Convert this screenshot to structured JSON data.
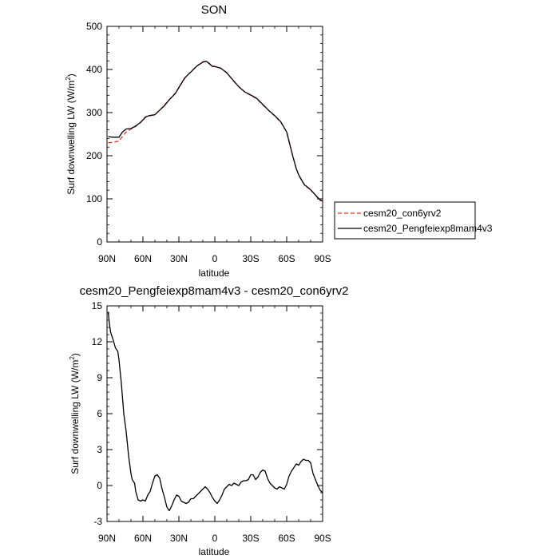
{
  "chart_data": [
    {
      "type": "line",
      "title": "SON",
      "xlabel": "latitude",
      "ylabel": "Surf downwelling LW (W/m",
      "ylabel_sup": "2",
      "ylabel_end": ")",
      "xlim": [
        90,
        -90
      ],
      "ylim": [
        0,
        500
      ],
      "x_ticks": [
        90,
        60,
        30,
        0,
        -30,
        -60,
        -90
      ],
      "x_tick_labels": [
        "90N",
        "60N",
        "30N",
        "0",
        "30S",
        "60S",
        "90S"
      ],
      "y_ticks": [
        0,
        100,
        200,
        300,
        400,
        500
      ],
      "y_tick_labels": [
        "0",
        "100",
        "200",
        "300",
        "400",
        "500"
      ],
      "legend_position": "outside-right",
      "series": [
        {
          "name": "cesm20_con6yrv2",
          "color": "#e03030",
          "dash": "dashed",
          "x": [
            89,
            85,
            80,
            77,
            74,
            70,
            66,
            62,
            58,
            55,
            50,
            46,
            42,
            38,
            33,
            29,
            25,
            20,
            15,
            10,
            7,
            5,
            2,
            0,
            -5,
            -10,
            -15,
            -20,
            -25,
            -30,
            -35,
            -40,
            -45,
            -50,
            -55,
            -60,
            -65,
            -68,
            -70,
            -73,
            -75,
            -78,
            -80,
            -83,
            -85,
            -88,
            -90
          ],
          "y": [
            230,
            231,
            234,
            245,
            255,
            262,
            268,
            278,
            290,
            292,
            296,
            305,
            318,
            330,
            345,
            362,
            380,
            395,
            408,
            418,
            419,
            415,
            408,
            407,
            403,
            393,
            375,
            360,
            348,
            340,
            332,
            318,
            305,
            292,
            278,
            255,
            200,
            170,
            155,
            140,
            132,
            125,
            120,
            112,
            105,
            96,
            95
          ]
        },
        {
          "name": "cesm20_Pengfeiexp8mam4v3",
          "color": "#000000",
          "dash": "solid",
          "x": [
            89,
            85,
            80,
            77,
            74,
            70,
            66,
            62,
            58,
            55,
            50,
            46,
            42,
            38,
            33,
            29,
            25,
            20,
            15,
            10,
            7,
            5,
            2,
            0,
            -5,
            -10,
            -15,
            -20,
            -25,
            -30,
            -35,
            -40,
            -45,
            -50,
            -55,
            -60,
            -65,
            -68,
            -70,
            -73,
            -75,
            -78,
            -80,
            -83,
            -85,
            -88,
            -90
          ],
          "y": [
            244,
            243,
            243,
            255,
            262,
            263,
            269,
            277,
            289,
            293,
            295,
            306,
            316,
            330,
            344,
            363,
            381,
            394,
            408,
            417,
            419,
            414,
            407,
            407,
            403,
            392,
            376,
            360,
            348,
            341,
            333,
            319,
            305,
            293,
            279,
            255,
            200,
            170,
            156,
            141,
            132,
            126,
            121,
            112,
            106,
            97,
            95
          ]
        }
      ]
    },
    {
      "type": "line",
      "title": "cesm20_Pengfeiexp8mam4v3 - cesm20_con6yrv2",
      "xlabel": "latitude",
      "ylabel": "Surf downwelling LW (W/m",
      "ylabel_sup": "2",
      "ylabel_end": ")",
      "xlim": [
        90,
        -90
      ],
      "ylim": [
        -3,
        15
      ],
      "x_ticks": [
        90,
        60,
        30,
        0,
        -30,
        -60,
        -90
      ],
      "x_tick_labels": [
        "90N",
        "60N",
        "30N",
        "0",
        "30S",
        "60S",
        "90S"
      ],
      "y_ticks": [
        -3,
        0,
        3,
        6,
        9,
        12,
        15
      ],
      "y_tick_labels": [
        "-3",
        "0",
        "3",
        "6",
        "9",
        "12",
        "15"
      ],
      "series": [
        {
          "color": "#000000",
          "dash": "solid",
          "x": [
            89,
            88,
            87,
            85,
            83,
            81,
            80,
            78,
            76,
            74,
            72,
            70,
            69,
            67,
            66,
            64,
            62,
            60,
            58,
            56,
            54,
            52,
            50,
            48,
            46,
            44,
            42,
            40,
            38,
            36,
            34,
            32,
            30,
            28,
            26,
            24,
            22,
            20,
            18,
            16,
            14,
            12,
            10,
            8,
            6,
            4,
            2,
            0,
            -2,
            -4,
            -6,
            -8,
            -10,
            -12,
            -14,
            -16,
            -18,
            -20,
            -22,
            -24,
            -26,
            -28,
            -30,
            -32,
            -34,
            -36,
            -38,
            -40,
            -42,
            -44,
            -46,
            -48,
            -50,
            -52,
            -54,
            -56,
            -58,
            -60,
            -62,
            -64,
            -66,
            -68,
            -70,
            -72,
            -74,
            -76,
            -78,
            -80,
            -82,
            -84,
            -86,
            -88,
            -90
          ],
          "y": [
            14.5,
            13.5,
            12.8,
            12.2,
            11.5,
            11.2,
            10.5,
            8.5,
            6.0,
            4.5,
            2.5,
            1.0,
            0.5,
            0.2,
            -0.5,
            -1.2,
            -1.3,
            -1.2,
            -1.3,
            -0.8,
            -0.5,
            0.2,
            0.8,
            0.9,
            0.6,
            -0.3,
            -1.0,
            -1.8,
            -2.1,
            -1.7,
            -1.2,
            -0.8,
            -0.9,
            -1.3,
            -1.4,
            -1.5,
            -1.4,
            -1.1,
            -1.1,
            -0.9,
            -0.7,
            -0.5,
            -0.3,
            -0.1,
            -0.3,
            -0.6,
            -1.0,
            -1.3,
            -1.5,
            -1.2,
            -0.8,
            -0.3,
            -0.1,
            0.1,
            0.0,
            0.2,
            0.1,
            0.0,
            0.3,
            0.4,
            0.4,
            0.5,
            0.9,
            0.9,
            0.5,
            0.7,
            1.1,
            1.3,
            1.2,
            0.6,
            0.2,
            0.0,
            -0.2,
            -0.3,
            -0.1,
            -0.2,
            -0.3,
            0.1,
            0.8,
            1.2,
            1.5,
            1.8,
            1.7,
            2.0,
            2.2,
            2.1,
            2.1,
            1.9,
            1.0,
            0.5,
            0.0,
            -0.4,
            -0.6
          ]
        }
      ]
    }
  ]
}
